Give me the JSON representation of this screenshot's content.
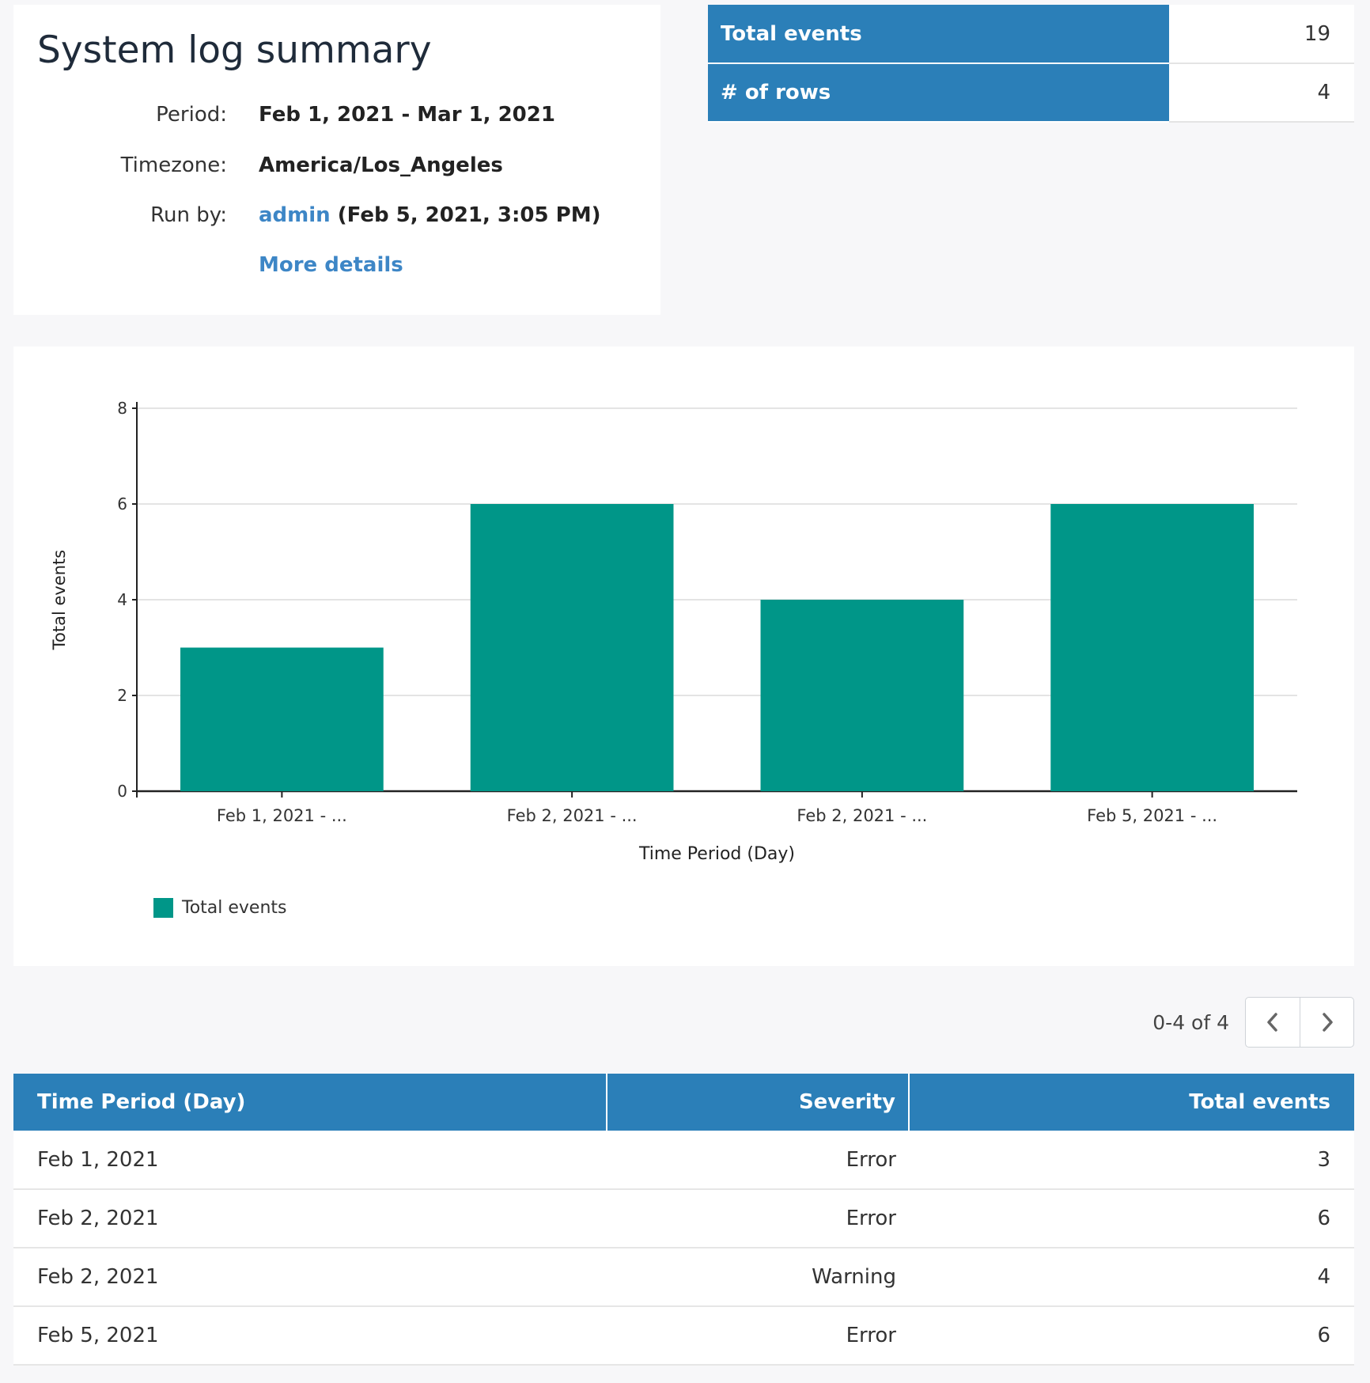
{
  "summary": {
    "title": "System log summary",
    "period_label": "Period:",
    "period_value": "Feb 1, 2021 - Mar 1, 2021",
    "timezone_label": "Timezone:",
    "timezone_value": "America/Los_Angeles",
    "runby_label": "Run by:",
    "runby_user": "admin",
    "runby_time": "(Feb 5, 2021, 3:05 PM)",
    "more_details": "More details"
  },
  "stats": [
    {
      "label": "Total events",
      "value": "19"
    },
    {
      "label": "# of rows",
      "value": "4"
    }
  ],
  "chart_data": {
    "type": "bar",
    "categories": [
      "Feb 1, 2021 - ...",
      "Feb 2, 2021 - ...",
      "Feb 2, 2021 - ...",
      "Feb 5, 2021 - ..."
    ],
    "series": [
      {
        "name": "Total events",
        "values": [
          3,
          6,
          4,
          6
        ],
        "color": "#009688"
      }
    ],
    "xlabel": "Time Period (Day)",
    "ylabel": "Total events",
    "ylim": [
      0,
      8
    ],
    "yticks": [
      0,
      2,
      4,
      6,
      8
    ],
    "grid": true,
    "legend": "bottom-left"
  },
  "pager": {
    "text": "0-4 of 4"
  },
  "table": {
    "headers": [
      "Time Period (Day)",
      "Severity",
      "Total events"
    ],
    "rows": [
      [
        "Feb 1, 2021",
        "Error",
        "3"
      ],
      [
        "Feb 2, 2021",
        "Error",
        "6"
      ],
      [
        "Feb 2, 2021",
        "Warning",
        "4"
      ],
      [
        "Feb 5, 2021",
        "Error",
        "6"
      ]
    ]
  },
  "colors": {
    "header": "#2b7fb8",
    "bar": "#009688",
    "link": "#3d86c6"
  }
}
